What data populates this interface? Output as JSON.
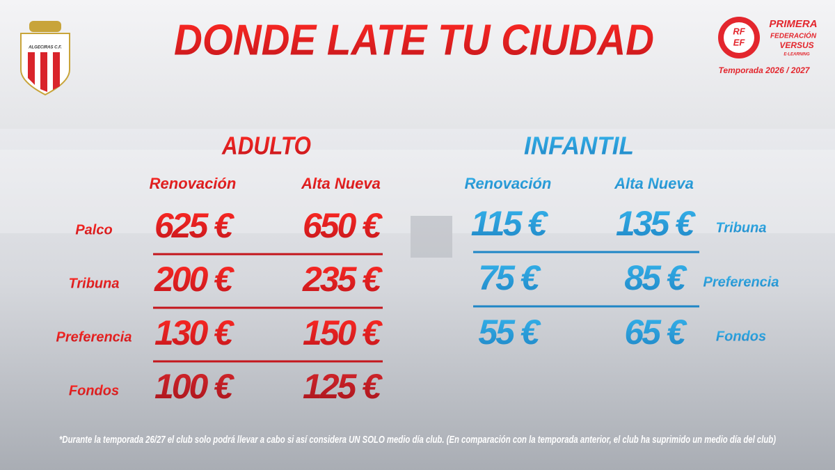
{
  "header": {
    "title": "DONDE LATE TU CIUDAD",
    "club_logo": "ALGECIRAS C.F.",
    "league": {
      "badge_top": "RF",
      "badge_bottom": "EF",
      "name": "PRIMERA",
      "sub": "FEDERACIÓN",
      "sponsor": "VERSUS",
      "sponsor_sub": "E-LEARNING",
      "season": "Temporada 2026 / 2027"
    }
  },
  "adulto": {
    "title": "ADULTO",
    "columns": [
      "Renovación",
      "Alta Nueva"
    ],
    "rows": [
      {
        "label": "Palco",
        "values": [
          "625 €",
          "650 €"
        ]
      },
      {
        "label": "Tribuna",
        "values": [
          "200 €",
          "235 €"
        ]
      },
      {
        "label": "Preferencia",
        "values": [
          "130 €",
          "150 €"
        ]
      },
      {
        "label": "Fondos",
        "values": [
          "100 €",
          "125 €"
        ]
      }
    ]
  },
  "infantil": {
    "title": "INFANTIL",
    "columns": [
      "Renovación",
      "Alta Nueva"
    ],
    "rows": [
      {
        "label": "Tribuna",
        "values": [
          "115 €",
          "135 €"
        ]
      },
      {
        "label": "Preferencia",
        "values": [
          "75 €",
          "85 €"
        ]
      },
      {
        "label": "Fondos",
        "values": [
          "55 €",
          "65 €"
        ]
      }
    ]
  },
  "footnote": "*Durante la temporada 26/27 el club solo podrá llevar a cabo si así considera UN SOLO medio día club. (En comparación con la temporada anterior, el club ha suprimido un medio día del club)"
}
